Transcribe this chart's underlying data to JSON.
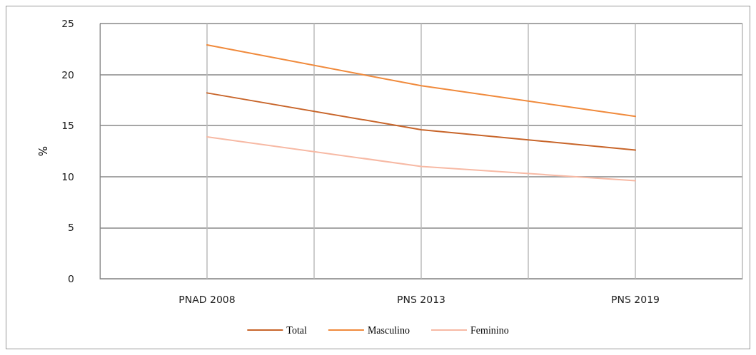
{
  "chart_data": {
    "type": "line",
    "ylabel": "%",
    "categories": [
      "PNAD 2008",
      "PNS 2013",
      "PNS 2019"
    ],
    "series": [
      {
        "name": "Total",
        "color": "#c8652a",
        "values": [
          18.2,
          14.6,
          12.6
        ]
      },
      {
        "name": "Masculino",
        "color": "#f08a3c",
        "values": [
          22.9,
          18.9,
          15.9
        ]
      },
      {
        "name": "Feminino",
        "color": "#f7b9a4",
        "values": [
          13.9,
          11.0,
          9.6
        ]
      }
    ],
    "ylim": [
      0,
      25
    ],
    "yticks": [
      0,
      5,
      10,
      15,
      20,
      25
    ],
    "grid": true,
    "legend": "bottom",
    "marker": "none",
    "line_style": "solid"
  }
}
